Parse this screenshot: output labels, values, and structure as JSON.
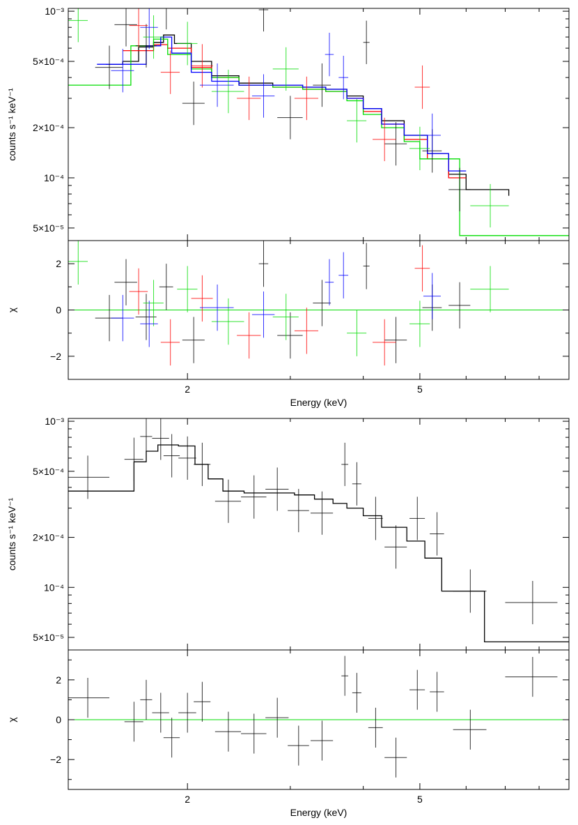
{
  "chart_data": [
    {
      "type": "scatter",
      "description_from_view": "X-ray spectrum with error-bar data points and step-function model, four instruments",
      "xlabel": "Energy (keV)",
      "ylabel": "counts s⁻¹ keV⁻¹",
      "residual_label": "χ",
      "xlim": [
        1.25,
        9.0
      ],
      "ylim": [
        4.2e-05,
        0.00104
      ],
      "x_scale": "log",
      "y_scale": "log",
      "resid_ylim": [
        -3.0,
        3.0
      ],
      "x_ticks": [
        {
          "v": 2,
          "t": "2"
        },
        {
          "v": 5,
          "t": "5"
        }
      ],
      "y_ticks": [
        {
          "v": 0.001,
          "t": "10⁻³"
        },
        {
          "v": 0.0005,
          "t": "5×10⁻⁴"
        },
        {
          "v": 0.0002,
          "t": "2×10⁻⁴"
        },
        {
          "v": 0.0001,
          "t": "10⁻⁴"
        },
        {
          "v": 5e-05,
          "t": "5×10⁻⁵"
        }
      ],
      "resid_ticks": [
        {
          "v": 2,
          "t": "2"
        },
        {
          "v": 0,
          "t": "0"
        },
        {
          "v": -2,
          "t": "−2"
        }
      ],
      "series": [
        {
          "name": "black",
          "color": "#000000",
          "model": [
            [
              1.45,
              0.00048
            ],
            [
              1.55,
              0.0005
            ],
            [
              1.65,
              0.00061
            ],
            [
              1.75,
              0.00065
            ],
            [
              1.82,
              0.00072
            ],
            [
              1.9,
              0.00064
            ],
            [
              2.03,
              0.0005
            ],
            [
              2.2,
              0.00041
            ],
            [
              2.45,
              0.00037
            ],
            [
              2.8,
              0.00036
            ],
            [
              3.15,
              0.00035
            ],
            [
              3.45,
              0.00034
            ],
            [
              3.75,
              0.00031
            ],
            [
              4.0,
              0.00026
            ],
            [
              4.3,
              0.00022
            ],
            [
              4.7,
              0.00018
            ],
            [
              5.15,
              0.00014
            ],
            [
              5.6,
              0.000105
            ],
            [
              6.0,
              8.5e-05
            ],
            [
              7.1,
              7.8e-05
            ]
          ],
          "points": [
            {
              "x": 1.47,
              "y": 0.00046,
              "xe": 0.08,
              "r": -0.35
            },
            {
              "x": 1.57,
              "y": 0.00083,
              "xe": 0.07,
              "r": 1.2
            },
            {
              "x": 1.7,
              "y": 0.00062,
              "xe": 0.07,
              "r": -0.3
            },
            {
              "x": 1.84,
              "y": 0.00105,
              "xe": 0.05,
              "r": 1.0
            },
            {
              "x": 2.05,
              "y": 0.00028,
              "xe": 0.09,
              "r": -1.3
            },
            {
              "x": 2.7,
              "y": 0.00102,
              "xe": 0.05,
              "r": 2.0
            },
            {
              "x": 3.0,
              "y": 0.00023,
              "xe": 0.15,
              "r": -1.1
            },
            {
              "x": 3.4,
              "y": 0.00036,
              "xe": 0.12,
              "r": 0.3
            },
            {
              "x": 4.05,
              "y": 0.00065,
              "xe": 0.05,
              "r": 1.9
            },
            {
              "x": 4.55,
              "y": 0.00016,
              "xe": 0.2,
              "r": -1.3
            },
            {
              "x": 5.25,
              "y": 0.000145,
              "xe": 0.2,
              "r": 0.1
            },
            {
              "x": 5.85,
              "y": 8.5e-05,
              "xe": 0.25,
              "r": 0.2
            }
          ]
        },
        {
          "name": "red",
          "color": "#ff0000",
          "model": [
            [
              1.55,
              0.00058
            ],
            [
              1.75,
              0.00063
            ],
            [
              1.85,
              0.0006
            ],
            [
              2.03,
              0.00046
            ],
            [
              2.2,
              0.0004
            ],
            [
              2.45,
              0.00036
            ],
            [
              2.8,
              0.00035
            ],
            [
              3.15,
              0.00034
            ],
            [
              3.45,
              0.00033
            ],
            [
              3.75,
              0.0003
            ],
            [
              4.0,
              0.00025
            ],
            [
              4.3,
              0.00021
            ],
            [
              4.7,
              0.00017
            ],
            [
              5.15,
              0.00013
            ],
            [
              5.6,
              0.0001
            ],
            [
              6.0,
              0.0001
            ]
          ],
          "points": [
            {
              "x": 1.65,
              "y": 0.00082,
              "xe": 0.06,
              "r": 0.8
            },
            {
              "x": 1.87,
              "y": 0.00043,
              "xe": 0.07,
              "r": -1.4
            },
            {
              "x": 2.12,
              "y": 0.00047,
              "xe": 0.09,
              "r": 0.5
            },
            {
              "x": 2.55,
              "y": 0.0003,
              "xe": 0.12,
              "r": -1.1
            },
            {
              "x": 3.2,
              "y": 0.0003,
              "xe": 0.15,
              "r": -0.9
            },
            {
              "x": 4.35,
              "y": 0.00017,
              "xe": 0.2,
              "r": -1.4
            },
            {
              "x": 5.05,
              "y": 0.00035,
              "xe": 0.15,
              "r": 1.8
            }
          ]
        },
        {
          "name": "green",
          "color": "#00dd00",
          "model": [
            [
              1.25,
              0.00036
            ],
            [
              1.42,
              0.00036
            ],
            [
              1.6,
              0.00062
            ],
            [
              1.75,
              0.00068
            ],
            [
              1.85,
              0.00055
            ],
            [
              2.03,
              0.00045
            ],
            [
              2.2,
              0.0004
            ],
            [
              2.45,
              0.00036
            ],
            [
              2.8,
              0.00035
            ],
            [
              3.15,
              0.00034
            ],
            [
              3.45,
              0.00033
            ],
            [
              3.75,
              0.00029
            ],
            [
              4.0,
              0.00024
            ],
            [
              4.3,
              0.0002
            ],
            [
              4.7,
              0.000165
            ],
            [
              5.0,
              0.00013
            ],
            [
              5.6,
              0.00013
            ],
            [
              5.85,
              4.5e-05
            ],
            [
              9.0,
              4.5e-05
            ]
          ],
          "points": [
            {
              "x": 1.3,
              "y": 0.00088,
              "xe": 0.05,
              "r": 2.1
            },
            {
              "x": 1.75,
              "y": 0.0007,
              "xe": 0.07,
              "r": 0.3
            },
            {
              "x": 2.0,
              "y": 0.00064,
              "xe": 0.08,
              "r": 0.9
            },
            {
              "x": 2.35,
              "y": 0.00033,
              "xe": 0.15,
              "r": -0.5
            },
            {
              "x": 2.95,
              "y": 0.00045,
              "xe": 0.15,
              "r": -0.3
            },
            {
              "x": 3.9,
              "y": 0.00022,
              "xe": 0.15,
              "r": -1.0
            },
            {
              "x": 5.0,
              "y": 0.00015,
              "xe": 0.2,
              "r": -0.6
            },
            {
              "x": 6.6,
              "y": 6.8e-05,
              "xe": 0.5,
              "r": 0.9
            }
          ]
        },
        {
          "name": "blue",
          "color": "#0000ff",
          "model": [
            [
              1.4,
              0.00048
            ],
            [
              1.55,
              0.00048
            ],
            [
              1.7,
              0.00062
            ],
            [
              1.8,
              0.0007
            ],
            [
              1.88,
              0.00056
            ],
            [
              2.03,
              0.00043
            ],
            [
              2.2,
              0.00038
            ],
            [
              2.45,
              0.00036
            ],
            [
              2.8,
              0.00036
            ],
            [
              3.15,
              0.00035
            ],
            [
              3.45,
              0.00034
            ],
            [
              3.75,
              0.0003
            ],
            [
              4.0,
              0.00026
            ],
            [
              4.3,
              0.00021
            ],
            [
              4.7,
              0.00018
            ],
            [
              5.15,
              0.00014
            ],
            [
              5.6,
              0.00011
            ],
            [
              6.0,
              0.00011
            ]
          ],
          "points": [
            {
              "x": 1.55,
              "y": 0.00044,
              "xe": 0.07,
              "r": -0.35
            },
            {
              "x": 1.72,
              "y": 0.0008,
              "xe": 0.06,
              "r": -0.6
            },
            {
              "x": 2.25,
              "y": 0.00036,
              "xe": 0.15,
              "r": 0.1
            },
            {
              "x": 2.7,
              "y": 0.00031,
              "xe": 0.12,
              "r": -0.2
            },
            {
              "x": 3.5,
              "y": 0.00055,
              "xe": 0.06,
              "r": 1.2
            },
            {
              "x": 3.7,
              "y": 0.0004,
              "xe": 0.07,
              "r": 1.5
            },
            {
              "x": 5.25,
              "y": 0.00018,
              "xe": 0.18,
              "r": 0.6
            }
          ]
        }
      ]
    },
    {
      "type": "scatter",
      "description_from_view": "X-ray spectrum with error-bar data points and step-function model, single instrument",
      "xlabel": "Energy (keV)",
      "ylabel": "counts s⁻¹ keV⁻¹",
      "residual_label": "χ",
      "xlim": [
        1.25,
        9.0
      ],
      "ylim": [
        4.2e-05,
        0.00104
      ],
      "x_scale": "log",
      "y_scale": "log",
      "resid_ylim": [
        -3.5,
        3.5
      ],
      "x_ticks": [
        {
          "v": 2,
          "t": "2"
        },
        {
          "v": 5,
          "t": "5"
        }
      ],
      "y_ticks": [
        {
          "v": 0.001,
          "t": "10⁻³"
        },
        {
          "v": 0.0005,
          "t": "5×10⁻⁴"
        },
        {
          "v": 0.0002,
          "t": "2×10⁻⁴"
        },
        {
          "v": 0.0001,
          "t": "10⁻⁴"
        },
        {
          "v": 5e-05,
          "t": "5×10⁻⁵"
        }
      ],
      "resid_ticks": [
        {
          "v": 2,
          "t": "2"
        },
        {
          "v": 0,
          "t": "0"
        },
        {
          "v": -2,
          "t": "−2"
        }
      ],
      "series": [
        {
          "name": "black",
          "color": "#000000",
          "model": [
            [
              1.25,
              0.00038
            ],
            [
              1.47,
              0.00038
            ],
            [
              1.62,
              0.00057
            ],
            [
              1.7,
              0.00066
            ],
            [
              1.78,
              0.00072
            ],
            [
              1.93,
              0.00071
            ],
            [
              2.06,
              0.00055
            ],
            [
              2.17,
              0.00045
            ],
            [
              2.3,
              0.00038
            ],
            [
              2.5,
              0.00037
            ],
            [
              2.8,
              0.00037
            ],
            [
              3.05,
              0.00036
            ],
            [
              3.3,
              0.00034
            ],
            [
              3.55,
              0.00032
            ],
            [
              3.75,
              0.0003
            ],
            [
              4.0,
              0.00027
            ],
            [
              4.3,
              0.00023
            ],
            [
              4.75,
              0.00019
            ],
            [
              5.1,
              0.00015
            ],
            [
              5.45,
              9.5e-05
            ],
            [
              6.2,
              9.5e-05
            ],
            [
              6.45,
              4.7e-05
            ],
            [
              9.0,
              4.7e-05
            ]
          ],
          "points": [
            {
              "x": 1.35,
              "y": 0.00046,
              "xe": 0.12,
              "r": 1.1
            },
            {
              "x": 1.62,
              "y": 0.00059,
              "xe": 0.06,
              "r": -0.1
            },
            {
              "x": 1.7,
              "y": 0.00081,
              "xe": 0.04,
              "r": 1.0
            },
            {
              "x": 1.8,
              "y": 0.00079,
              "xe": 0.06,
              "r": 0.35
            },
            {
              "x": 1.88,
              "y": 0.00062,
              "xe": 0.06,
              "r": -0.9
            },
            {
              "x": 2.0,
              "y": 0.0006,
              "xe": 0.07,
              "r": 0.35
            },
            {
              "x": 2.12,
              "y": 0.00055,
              "xe": 0.07,
              "r": 0.9
            },
            {
              "x": 2.35,
              "y": 0.00033,
              "xe": 0.12,
              "r": -0.6
            },
            {
              "x": 2.6,
              "y": 0.00035,
              "xe": 0.13,
              "r": -0.7
            },
            {
              "x": 2.85,
              "y": 0.00039,
              "xe": 0.13,
              "r": 0.1
            },
            {
              "x": 3.1,
              "y": 0.00029,
              "xe": 0.13,
              "r": -1.3
            },
            {
              "x": 3.4,
              "y": 0.00028,
              "xe": 0.15,
              "r": -1.05
            },
            {
              "x": 3.72,
              "y": 0.00055,
              "xe": 0.05,
              "r": 2.2
            },
            {
              "x": 3.9,
              "y": 0.00042,
              "xe": 0.07,
              "r": 1.35
            },
            {
              "x": 4.2,
              "y": 0.00026,
              "xe": 0.12,
              "r": -0.4
            },
            {
              "x": 4.55,
              "y": 0.000175,
              "xe": 0.2,
              "r": -1.9
            },
            {
              "x": 4.95,
              "y": 0.00026,
              "xe": 0.15,
              "r": 1.5
            },
            {
              "x": 5.35,
              "y": 0.00021,
              "xe": 0.15,
              "r": 1.4
            },
            {
              "x": 6.1,
              "y": 9.5e-05,
              "xe": 0.4,
              "r": -0.5
            },
            {
              "x": 7.8,
              "y": 8.1e-05,
              "xe": 0.8,
              "r": 2.15
            }
          ]
        }
      ]
    }
  ]
}
